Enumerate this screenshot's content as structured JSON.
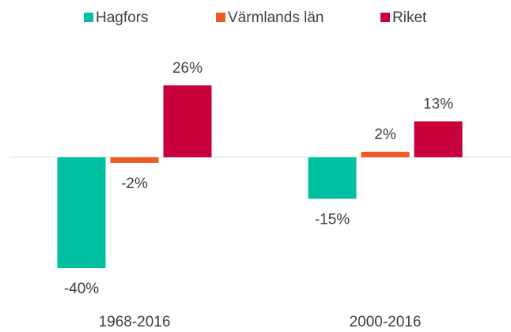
{
  "chart_data": {
    "type": "bar",
    "categories": [
      "1968-2016",
      "2000-2016"
    ],
    "series": [
      {
        "name": "Hagfors",
        "color": "#00c0a3",
        "values": [
          -40,
          -15
        ],
        "value_labels": [
          "-40%",
          "-15%"
        ]
      },
      {
        "name": "Värmlands län",
        "color": "#f05a22",
        "values": [
          -2,
          2
        ],
        "value_labels": [
          "-2%",
          "2%"
        ]
      },
      {
        "name": "Riket",
        "color": "#c8003c",
        "values": [
          26,
          13
        ],
        "value_labels": [
          "26%",
          "13%"
        ]
      }
    ],
    "ylim": [
      -50,
      40
    ],
    "legend": "top"
  }
}
